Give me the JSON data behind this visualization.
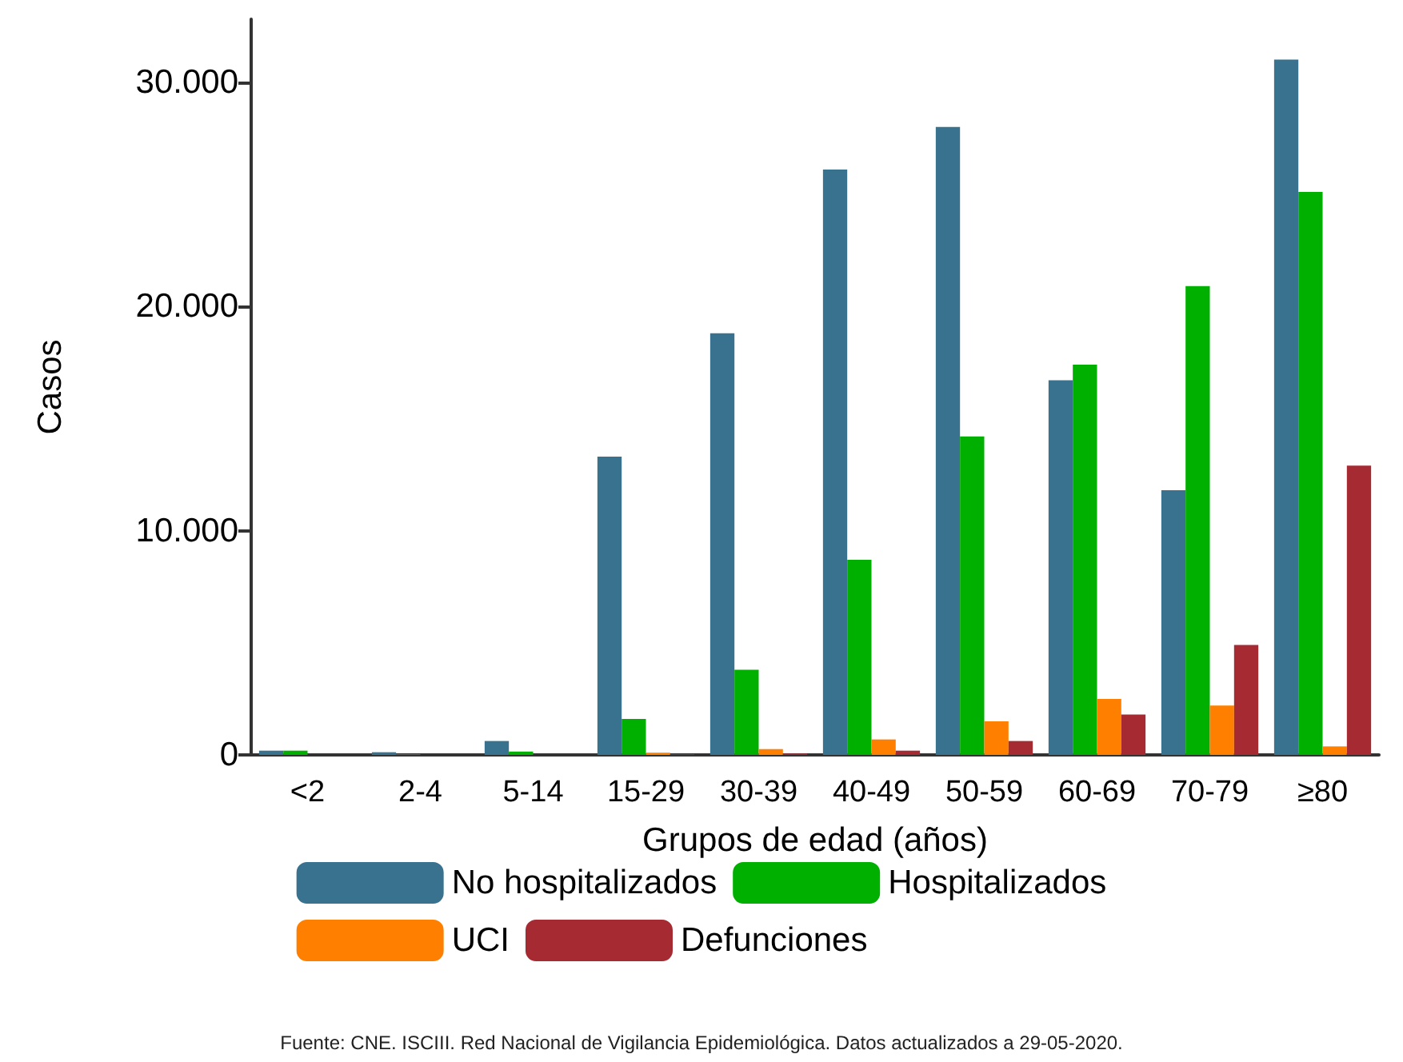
{
  "chart_data": {
    "type": "bar",
    "xlabel": "Grupos de edad (años)",
    "ylabel": "Casos",
    "categories": [
      "<2",
      "2-4",
      "5-14",
      "15-29",
      "30-39",
      "40-49",
      "50-59",
      "60-69",
      "70-79",
      "≥80"
    ],
    "series": [
      {
        "name": "No hospitalizados",
        "color": "#38728f",
        "values": [
          190,
          120,
          620,
          13300,
          18800,
          26100,
          28000,
          16700,
          11800,
          31000
        ]
      },
      {
        "name": "Hospitalizados",
        "color": "#00b000",
        "values": [
          190,
          30,
          150,
          1600,
          3800,
          8700,
          14200,
          17400,
          20900,
          25100
        ]
      },
      {
        "name": "UCI",
        "color": "#ff8000",
        "values": [
          null,
          0,
          null,
          100,
          260,
          690,
          1500,
          2500,
          2200,
          380
        ]
      },
      {
        "name": "Defunciones",
        "color": "#a52a32",
        "values": [
          0,
          0,
          0,
          30,
          60,
          190,
          620,
          1800,
          4900,
          12900
        ]
      }
    ],
    "ylim": [
      0,
      32800
    ],
    "yticks": [
      {
        "value": 0,
        "label": "0"
      },
      {
        "value": 10000,
        "label": "10.000"
      },
      {
        "value": 20000,
        "label": "20.000"
      },
      {
        "value": 30000,
        "label": "30.000"
      }
    ],
    "grid": false,
    "legend": "bottom",
    "annotations": [
      "Fuente: CNE. ISCIII. Red Nacional de Vigilancia Epidemiológica. Datos actualizados a 29-05-2020."
    ]
  }
}
